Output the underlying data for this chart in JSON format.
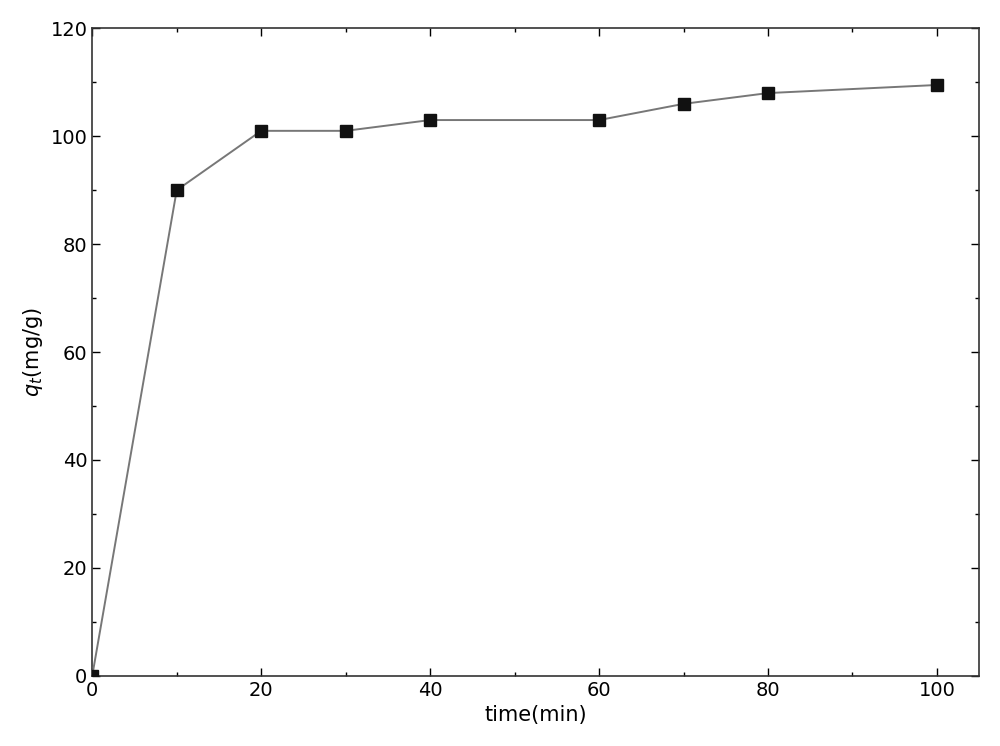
{
  "x": [
    0,
    10,
    20,
    30,
    40,
    60,
    70,
    80,
    100
  ],
  "y": [
    0,
    90,
    101,
    101,
    103,
    103,
    106,
    108,
    109.5
  ],
  "xlabel": "time(min)",
  "xlim": [
    0,
    105
  ],
  "ylim": [
    0,
    120
  ],
  "xticks": [
    0,
    20,
    40,
    60,
    80,
    100
  ],
  "yticks": [
    0,
    20,
    40,
    60,
    80,
    100,
    120
  ],
  "marker": "s",
  "marker_color": "#111111",
  "line_color": "#777777",
  "marker_size": 8,
  "line_width": 1.4,
  "background_color": "#ffffff",
  "axes_background": "#ffffff",
  "xlabel_fontsize": 15,
  "ylabel_fontsize": 15,
  "tick_fontsize": 14,
  "spine_color": "#333333"
}
